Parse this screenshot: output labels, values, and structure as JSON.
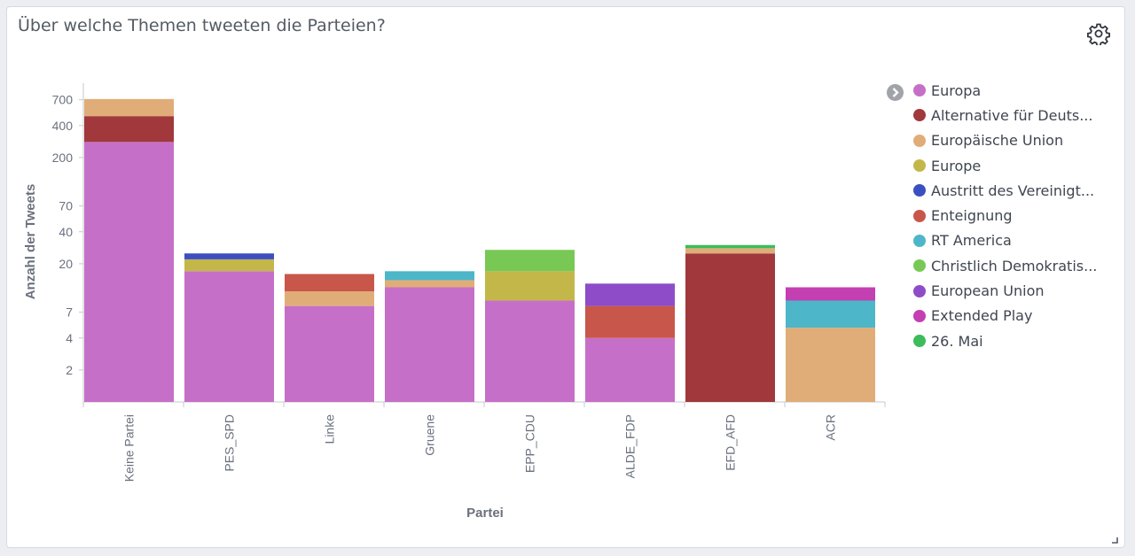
{
  "panel": {
    "title": "Über welche Themen tweeten die Parteien?",
    "settings_icon": "gear-icon",
    "resize_icon": "resize-handle-icon"
  },
  "legend": {
    "toggle_icon": "chevron-right-icon",
    "items": [
      {
        "label": "Europa",
        "color": "#c66fc8"
      },
      {
        "label": "Alternative für Deuts...",
        "color": "#a0383c"
      },
      {
        "label": "Europäische Union",
        "color": "#e0ad78"
      },
      {
        "label": "Europe",
        "color": "#c3b74a"
      },
      {
        "label": "Austritt des Vereinigt...",
        "color": "#3c4fc2"
      },
      {
        "label": "Enteignung",
        "color": "#c9564a"
      },
      {
        "label": "RT America",
        "color": "#4eb6c9"
      },
      {
        "label": "Christlich Demokratis...",
        "color": "#78c855"
      },
      {
        "label": "European Union",
        "color": "#8e4cc8"
      },
      {
        "label": "Extended Play",
        "color": "#c43fb1"
      },
      {
        "label": "26. Mai",
        "color": "#3cbc5a"
      }
    ]
  },
  "chart_data": {
    "type": "bar",
    "stacked": true,
    "scale": "log",
    "title": "Über welche Themen tweeten die Parteien?",
    "xlabel": "Partei",
    "ylabel": "Anzahl der Tweets",
    "yticks": [
      2,
      4,
      7,
      20,
      40,
      70,
      200,
      400,
      700
    ],
    "ylim": [
      1,
      1000
    ],
    "legend_position": "right",
    "categories": [
      "Keine Partei",
      "PES_SPD",
      "Linke",
      "Gruene",
      "EPP_CDU",
      "ALDE_FDP",
      "EFD_AFD",
      "ACR"
    ],
    "series": [
      {
        "name": "Europa",
        "color": "#c66fc8",
        "values": [
          280,
          17,
          8,
          12,
          9,
          4,
          0,
          0
        ]
      },
      {
        "name": "Alternative für Deuts...",
        "color": "#a0383c",
        "values": [
          210,
          0,
          0,
          0,
          0,
          0,
          25,
          0
        ]
      },
      {
        "name": "Europäische Union",
        "color": "#e0ad78",
        "values": [
          220,
          0,
          3,
          2,
          0,
          0,
          3,
          5
        ]
      },
      {
        "name": "Europe",
        "color": "#c3b74a",
        "values": [
          0,
          5,
          0,
          0,
          8,
          0,
          0,
          0
        ]
      },
      {
        "name": "Austritt des Vereinigt...",
        "color": "#3c4fc2",
        "values": [
          0,
          3,
          0,
          0,
          0,
          0,
          0,
          0
        ]
      },
      {
        "name": "Enteignung",
        "color": "#c9564a",
        "values": [
          0,
          0,
          5,
          0,
          0,
          4,
          0,
          0
        ]
      },
      {
        "name": "RT America",
        "color": "#4eb6c9",
        "values": [
          0,
          0,
          0,
          3,
          0,
          0,
          0,
          4
        ]
      },
      {
        "name": "Christlich Demokratis...",
        "color": "#78c855",
        "values": [
          0,
          0,
          0,
          0,
          10,
          0,
          0,
          0
        ]
      },
      {
        "name": "European Union",
        "color": "#8e4cc8",
        "values": [
          0,
          0,
          0,
          0,
          0,
          5,
          0,
          0
        ]
      },
      {
        "name": "Extended Play",
        "color": "#c43fb1",
        "values": [
          0,
          0,
          0,
          0,
          0,
          0,
          0,
          3
        ]
      },
      {
        "name": "26. Mai",
        "color": "#3cbc5a",
        "values": [
          0,
          0,
          0,
          0,
          0,
          0,
          2,
          0
        ]
      }
    ]
  }
}
